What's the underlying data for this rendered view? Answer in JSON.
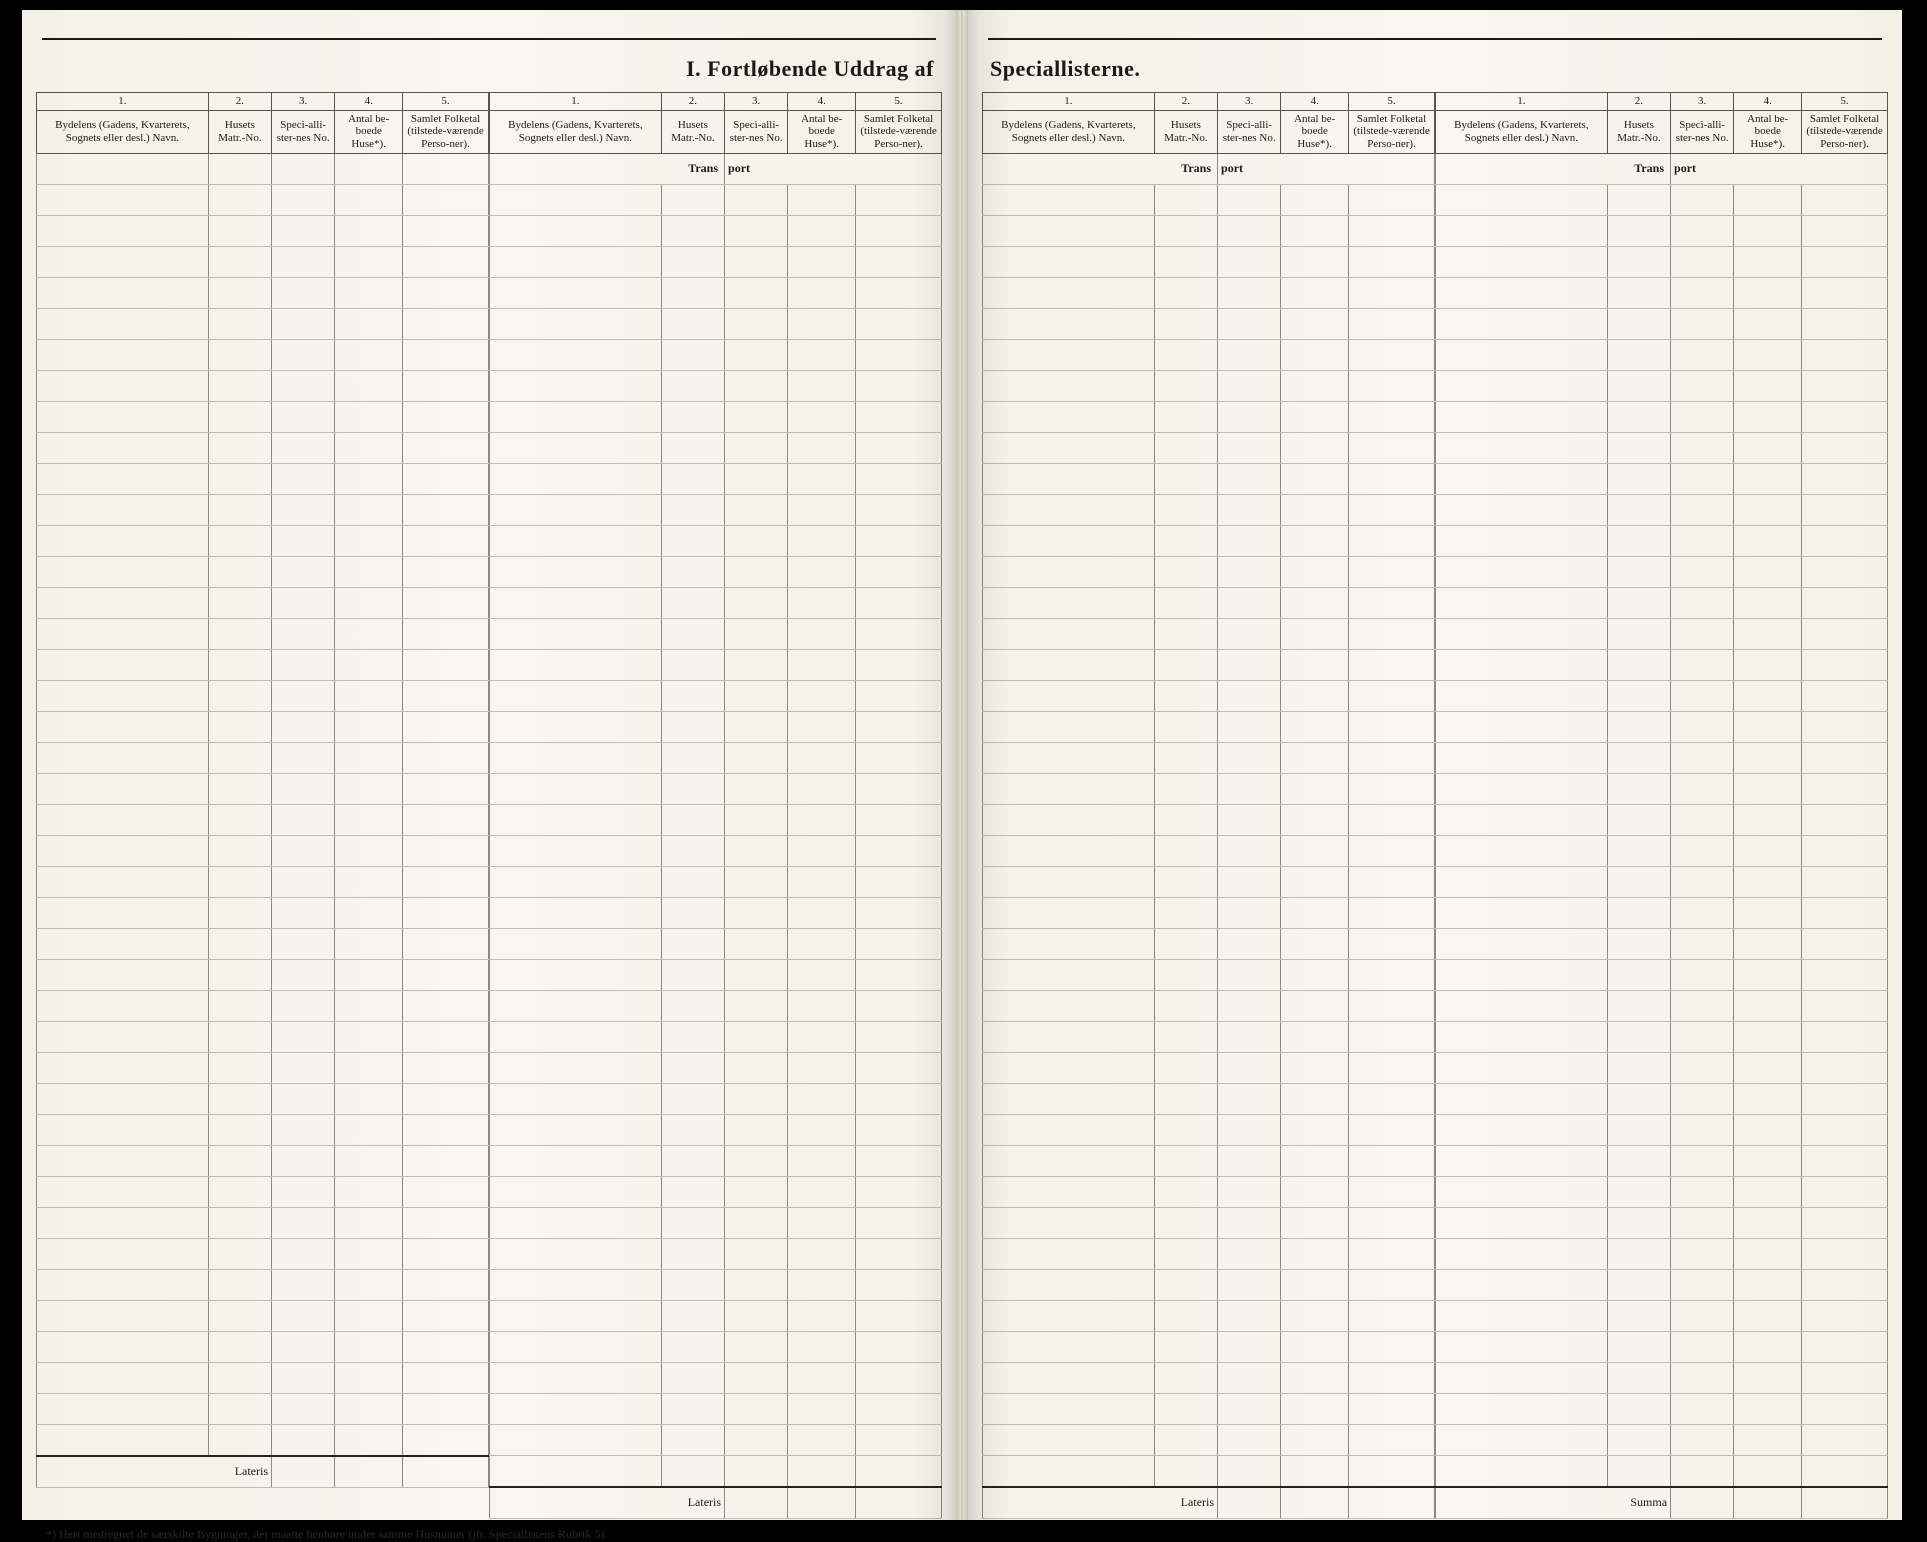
{
  "title_left": "I.  Fortløbende  Uddrag  af",
  "title_right": "Speciallisterne.",
  "col_nums": [
    "1.",
    "2.",
    "3.",
    "4.",
    "5."
  ],
  "headers": {
    "c1": "Bydelens (Gadens, Kvarterets, Sognets eller desl.) Navn.",
    "c2": "Husets Matr.-No.",
    "c3": "Speci-alli-ster-nes No.",
    "c4": "Antal be-boede Huse*).",
    "c5": "Samlet Folketal (tilstede-værende Perso-ner)."
  },
  "transport_label": "Trans",
  "transport_label2": "port",
  "lateris_label": "Lateris",
  "summa_label": "Summa",
  "footnote": "*) Heri medregnet de særskilte Bygninger, der maatte henhøre under samme Husnumer (jfr. Speciallistens Rubrik 5).",
  "blank_rows": 42,
  "colors": {
    "paper": "#f5f2ea",
    "ink": "#1a1a1a",
    "rule_light": "#bbb",
    "rule_dark": "#555"
  }
}
